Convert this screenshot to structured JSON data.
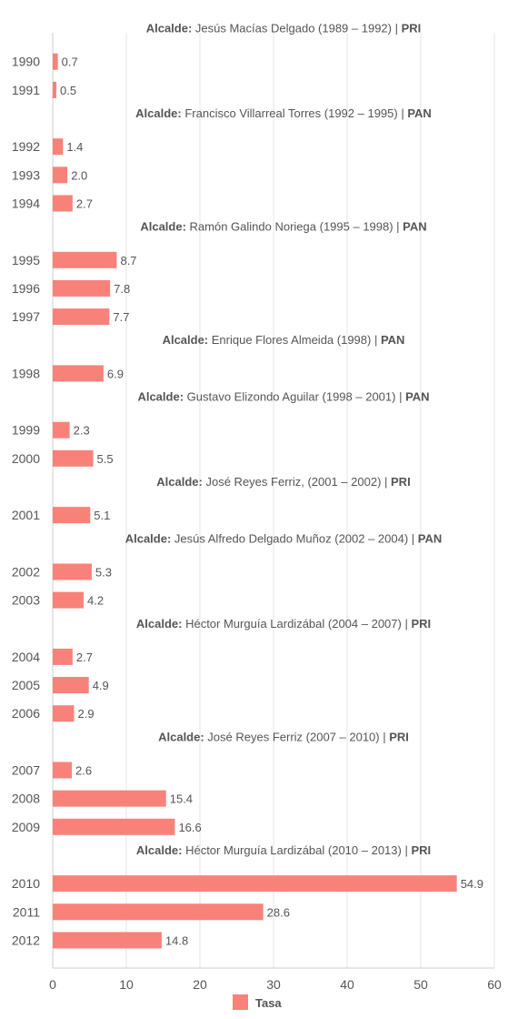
{
  "chart_data": {
    "type": "bar",
    "orientation": "horizontal",
    "categories": [
      "1990",
      "1991",
      "1992",
      "1993",
      "1994",
      "1995",
      "1996",
      "1997",
      "1998",
      "1999",
      "2000",
      "2001",
      "2002",
      "2003",
      "2004",
      "2005",
      "2006",
      "2007",
      "2008",
      "2009",
      "2010",
      "2011",
      "2012"
    ],
    "series": [
      {
        "name": "Tasa",
        "color": "#f8827a",
        "values": [
          0.7,
          0.5,
          1.4,
          2.0,
          2.7,
          8.7,
          7.8,
          7.7,
          6.9,
          2.3,
          5.5,
          5.1,
          5.3,
          4.2,
          2.7,
          4.9,
          2.9,
          2.6,
          15.4,
          16.6,
          54.9,
          28.6,
          14.8
        ]
      }
    ],
    "value_labels": [
      "0.7",
      "0.5",
      "1.4",
      "2.0",
      "2.7",
      "8.7",
      "7.8",
      "7.7",
      "6.9",
      "2.3",
      "5.5",
      "5.1",
      "5.3",
      "4.2",
      "2.7",
      "4.9",
      "2.9",
      "2.6",
      "15.4",
      "16.6",
      "54.9",
      "28.6",
      "14.8"
    ],
    "xlim": [
      0,
      60
    ],
    "xticks": [
      "0",
      "10",
      "20",
      "30",
      "40",
      "50",
      "60"
    ],
    "grid": true,
    "legend": {
      "position": "bottom-center",
      "entries": [
        "Tasa"
      ]
    },
    "annotations": [
      {
        "before": "1990",
        "bold_prefix": "Alcalde:",
        "text": " Jesús Macías Delgado (1989 – 1992) | ",
        "bold_suffix": "PRI"
      },
      {
        "before": "1992",
        "bold_prefix": "Alcalde:",
        "text": "  Francisco Villarreal Torres (1992 – 1995) | ",
        "bold_suffix": "PAN"
      },
      {
        "before": "1995",
        "bold_prefix": "Alcalde:",
        "text": " Ramón Galindo Noriega (1995 – 1998) | ",
        "bold_suffix": "PAN"
      },
      {
        "before": "1998",
        "bold_prefix": "Alcalde:",
        "text": " Enrique Flores Almeida (1998) | ",
        "bold_suffix": "PAN"
      },
      {
        "before": "1999",
        "bold_prefix": "Alcalde:",
        "text": " Gustavo Elizondo Aguilar (1998 – 2001) | ",
        "bold_suffix": "PAN"
      },
      {
        "before": "2001",
        "bold_prefix": "Alcalde:",
        "text": " José Reyes Ferriz, (2001 – 2002) | ",
        "bold_suffix": "PRI"
      },
      {
        "before": "2002",
        "bold_prefix": "Alcalde:",
        "text": " Jesús Alfredo Delgado Muñoz (2002 – 2004) | ",
        "bold_suffix": "PAN"
      },
      {
        "before": "2004",
        "bold_prefix": "Alcalde:",
        "text": " Héctor Murguía Lardizábal (2004 – 2007) | ",
        "bold_suffix": "PRI"
      },
      {
        "before": "2007",
        "bold_prefix": "Alcalde:",
        "text": " José Reyes Ferriz (2007 – 2010)  | ",
        "bold_suffix": "PRI"
      },
      {
        "before": "2010",
        "bold_prefix": "Alcalde:",
        "text": " Héctor Murguía Lardizábal (2010 – 2013) | ",
        "bold_suffix": "PRI"
      }
    ],
    "colors": {
      "bar": "#f8827a",
      "grid": "#e6e6e6",
      "text": "#555555",
      "axis": "#cccccc"
    }
  }
}
